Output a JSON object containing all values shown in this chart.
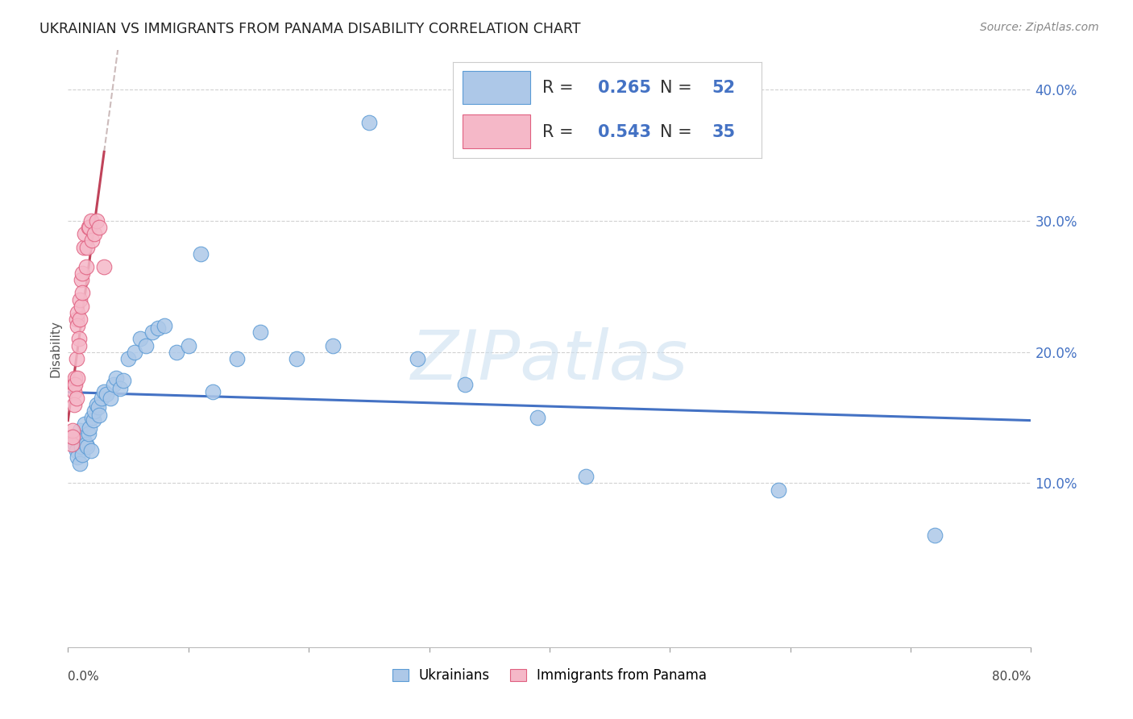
{
  "title": "UKRAINIAN VS IMMIGRANTS FROM PANAMA DISABILITY CORRELATION CHART",
  "source": "Source: ZipAtlas.com",
  "ylabel": "Disability",
  "watermark": "ZIPatlas",
  "blue_label": "Ukrainians",
  "pink_label": "Immigrants from Panama",
  "blue_R": "0.265",
  "blue_N": "52",
  "pink_R": "0.543",
  "pink_N": "35",
  "blue_color": "#adc8e8",
  "blue_edge": "#5b9bd5",
  "pink_color": "#f5b8c8",
  "pink_edge": "#e06080",
  "trend_blue": "#4472c4",
  "trend_pink": "#c0435a",
  "xlim": [
    0.0,
    0.8
  ],
  "ylim": [
    -0.025,
    0.43
  ],
  "yticks": [
    0.1,
    0.2,
    0.3,
    0.4
  ],
  "ytick_labels": [
    "10.0%",
    "20.0%",
    "30.0%",
    "40.0%"
  ],
  "blue_x": [
    0.005,
    0.006,
    0.007,
    0.008,
    0.009,
    0.01,
    0.01,
    0.011,
    0.012,
    0.013,
    0.014,
    0.015,
    0.016,
    0.017,
    0.018,
    0.019,
    0.02,
    0.021,
    0.022,
    0.024,
    0.025,
    0.026,
    0.028,
    0.03,
    0.032,
    0.035,
    0.038,
    0.04,
    0.043,
    0.046,
    0.05,
    0.055,
    0.06,
    0.065,
    0.07,
    0.075,
    0.08,
    0.09,
    0.1,
    0.11,
    0.12,
    0.14,
    0.16,
    0.19,
    0.22,
    0.25,
    0.29,
    0.33,
    0.39,
    0.43,
    0.59,
    0.72
  ],
  "blue_y": [
    0.135,
    0.13,
    0.125,
    0.12,
    0.135,
    0.14,
    0.115,
    0.128,
    0.122,
    0.133,
    0.145,
    0.13,
    0.128,
    0.138,
    0.142,
    0.125,
    0.15,
    0.148,
    0.155,
    0.16,
    0.158,
    0.152,
    0.165,
    0.17,
    0.168,
    0.165,
    0.175,
    0.18,
    0.172,
    0.178,
    0.195,
    0.2,
    0.21,
    0.205,
    0.215,
    0.218,
    0.22,
    0.2,
    0.205,
    0.275,
    0.17,
    0.195,
    0.215,
    0.195,
    0.205,
    0.375,
    0.195,
    0.175,
    0.15,
    0.105,
    0.095,
    0.06
  ],
  "pink_x": [
    0.003,
    0.003,
    0.004,
    0.004,
    0.005,
    0.005,
    0.005,
    0.006,
    0.006,
    0.007,
    0.007,
    0.007,
    0.008,
    0.008,
    0.008,
    0.009,
    0.009,
    0.01,
    0.01,
    0.011,
    0.011,
    0.012,
    0.012,
    0.013,
    0.014,
    0.015,
    0.016,
    0.017,
    0.018,
    0.019,
    0.02,
    0.022,
    0.024,
    0.026,
    0.03
  ],
  "pink_y": [
    0.135,
    0.13,
    0.14,
    0.135,
    0.175,
    0.17,
    0.16,
    0.18,
    0.175,
    0.225,
    0.195,
    0.165,
    0.23,
    0.22,
    0.18,
    0.21,
    0.205,
    0.24,
    0.225,
    0.255,
    0.235,
    0.26,
    0.245,
    0.28,
    0.29,
    0.265,
    0.28,
    0.295,
    0.295,
    0.3,
    0.285,
    0.29,
    0.3,
    0.295,
    0.265
  ]
}
